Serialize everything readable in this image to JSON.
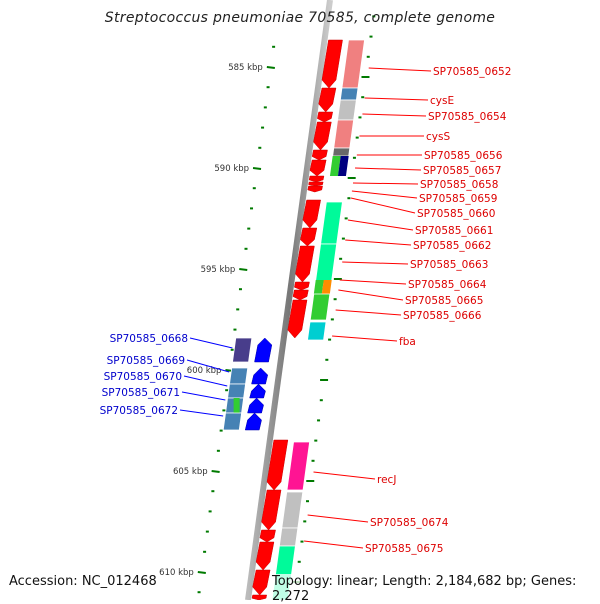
{
  "title": "Streptococcus pneumoniae 70585, complete genome",
  "footer": {
    "accession": "Accession: NC_012468",
    "summary": "Topology: linear; Length: 2,184,682 bp; Genes: 2,272"
  },
  "colors": {
    "forward_gene": "#ff0000",
    "reverse_gene": "#0000ff",
    "forward_label": "#dd0000",
    "reverse_label": "#0000cc",
    "tick": "#007a00",
    "axis": "#888888"
  },
  "scale": {
    "unit": "kbp",
    "major_ticks": [
      {
        "kbp": 585,
        "label": "585 kbp"
      },
      {
        "kbp": 590,
        "label": "590 kbp"
      },
      {
        "kbp": 595,
        "label": "595 kbp"
      },
      {
        "kbp": 600,
        "label": "600 kbp"
      },
      {
        "kbp": 605,
        "label": "605 kbp"
      },
      {
        "kbp": 610,
        "label": "610 kbp"
      }
    ]
  },
  "genes": {
    "forward": [
      {
        "label": "SP70585_0652",
        "cog_color": "#f08080"
      },
      {
        "label": "cysE",
        "cog_color": "#4682b4"
      },
      {
        "label": "SP70585_0654",
        "cog_color": "#c0c0c0"
      },
      {
        "label": "cysS",
        "cog_color": "#f08080"
      },
      {
        "label": "SP70585_0656",
        "cog_color": "#696969"
      },
      {
        "label": "SP70585_0657",
        "cog_color": "#32cd32"
      },
      {
        "label": "SP70585_0658",
        "cog_color": "#000080"
      },
      {
        "label": "SP70585_0659",
        "cog_color": ""
      },
      {
        "label": "SP70585_0660",
        "cog_color": ""
      },
      {
        "label": "SP70585_0661",
        "cog_color": "#00fa9a"
      },
      {
        "label": "SP70585_0662",
        "cog_color": "#00fa9a"
      },
      {
        "label": "SP70585_0663",
        "cog_color": "#00fa9a"
      },
      {
        "label": "SP70585_0664",
        "cog_color": "#ff8c00"
      },
      {
        "label": "SP70585_0665",
        "cog_color": "#32cd32"
      },
      {
        "label": "SP70585_0666",
        "cog_color": "#32cd32"
      },
      {
        "label": "fba",
        "cog_color": "#00ced1"
      },
      {
        "label": "recJ",
        "cog_color": "#ff1493"
      },
      {
        "label": "SP70585_0674",
        "cog_color": "#c0c0c0"
      },
      {
        "label": "SP70585_0675",
        "cog_color": "#c0c0c0"
      }
    ],
    "reverse": [
      {
        "label": "SP70585_0668",
        "cog_color": "#483d8b"
      },
      {
        "label": "SP70585_0669",
        "cog_color": "#4682b4"
      },
      {
        "label": "SP70585_0670",
        "cog_color": "#4682b4"
      },
      {
        "label": "SP70585_0671",
        "cog_color": "#32cd32"
      },
      {
        "label": "SP70585_0672",
        "cog_color": "#4682b4"
      }
    ]
  }
}
